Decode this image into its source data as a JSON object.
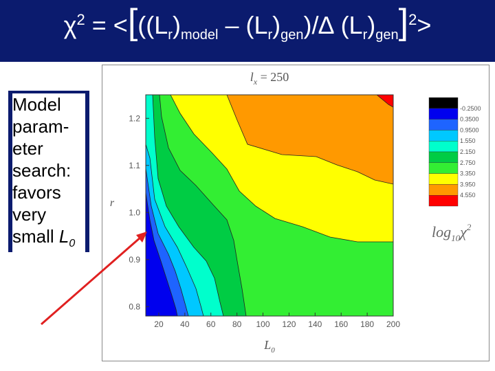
{
  "slide": {
    "title_parts": {
      "chi": "χ",
      "exp": "2",
      "eq": " = <",
      "lbr": "[",
      "open": "((L",
      "sub_r1": "r",
      "close1": ")",
      "sub_model": "model",
      "minus": " – (L",
      "sub_r2": "r",
      "close2": ")",
      "sub_gen1": "gen",
      "div": ")/∆ (L",
      "sub_r3": "r",
      "close3": ")",
      "sub_gen2": "gen",
      "rbr": "]",
      "exp2": "2",
      "end": ">"
    },
    "note_lines": [
      "Model",
      "param-",
      "eter",
      "search:",
      "favors",
      "very",
      "small "
    ],
    "note_var": "L",
    "note_var_sub": "0"
  },
  "colors": {
    "title_bg": "#0b1b6e",
    "arrow": "#e02020",
    "palette": [
      "#000000",
      "#0000ee",
      "#1e64ff",
      "#00c8ff",
      "#00ffcc",
      "#00cc44",
      "#33ee33",
      "#ffff00",
      "#ff9900",
      "#ff0000"
    ]
  },
  "chart_data": {
    "type": "contour",
    "title": "l",
    "title_sub": "x",
    "title_value": " = 250",
    "xlabel": "L",
    "xlabel_sub": "0",
    "ylabel": "r",
    "x_ticks": [
      "20",
      "40",
      "60",
      "80",
      "100",
      "120",
      "140",
      "160",
      "180",
      "200"
    ],
    "y_ticks": [
      "0.8",
      "0.9",
      "1.0",
      "1.1",
      "1.2"
    ],
    "xlim": [
      10,
      200
    ],
    "ylim": [
      0.78,
      1.25
    ],
    "colorbar_title": "log",
    "colorbar_sub": "10",
    "colorbar_sym": "χ",
    "colorbar_sup": "2",
    "levels": [
      "-0.2500",
      "0.3500",
      "0.9500",
      "1.550",
      "2.150",
      "2.750",
      "3.350",
      "3.950",
      "4.550"
    ],
    "level_colors": [
      "#000000",
      "#0000ee",
      "#1e64ff",
      "#00c8ff",
      "#00ffcc",
      "#00cc44",
      "#33ee33",
      "#ffff00",
      "#ff9900",
      "#ff0000"
    ]
  }
}
